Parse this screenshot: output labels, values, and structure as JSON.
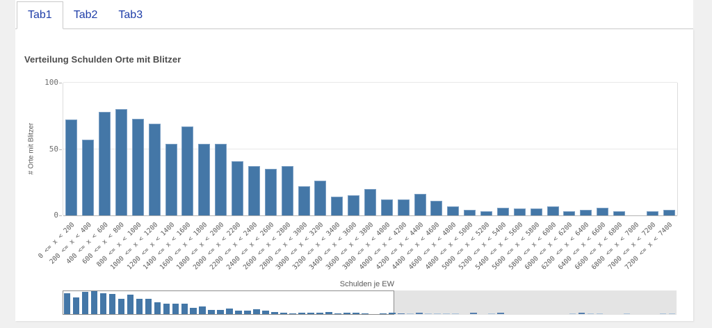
{
  "tabs": [
    {
      "label": "Tab1",
      "active": true
    },
    {
      "label": "Tab2",
      "active": false
    },
    {
      "label": "Tab3",
      "active": false
    }
  ],
  "colors": {
    "bar": "#4477a7",
    "bar_dim": "#a9c3dc",
    "bar_dim_dark": "#567fae",
    "tab_text": "#1e3da8"
  },
  "chart_data": {
    "type": "bar",
    "title": "Verteilung Schulden Orte mit Blitzer",
    "xlabel": "Schulden je EW",
    "ylabel": "# Orte mit Blitzer",
    "ylim": [
      0,
      100
    ],
    "yticks": [
      0,
      50,
      100
    ],
    "grid": "horizontal",
    "legend": "none",
    "categories": [
      "0 <= x < 200",
      "200 <= x < 400",
      "400 <= x < 600",
      "600 <= x < 800",
      "800 <= x < 1000",
      "1000 <= x < 1200",
      "1200 <= x < 1400",
      "1400 <= x < 1600",
      "1600 <= x < 1800",
      "1800 <= x < 2000",
      "2000 <= x < 2200",
      "2200 <= x < 2400",
      "2400 <= x < 2600",
      "2600 <= x < 2800",
      "2800 <= x < 3000",
      "3000 <= x < 3200",
      "3200 <= x < 3400",
      "3400 <= x < 3600",
      "3600 <= x < 3800",
      "3800 <= x < 4000",
      "4000 <= x < 4200",
      "4200 <= x < 4400",
      "4400 <= x < 4600",
      "4600 <= x < 4800",
      "4800 <= x < 5000",
      "5000 <= x < 5200",
      "5200 <= x < 5400",
      "5400 <= x < 5600",
      "5600 <= x < 5800",
      "5800 <= x < 6000",
      "6000 <= x < 6200",
      "6200 <= x < 6400",
      "6400 <= x < 6600",
      "6600 <= x < 6800",
      "6800 <= x < 7000",
      "7000 <= x < 7200",
      "7200 <= x < 7400"
    ],
    "values": [
      72,
      57,
      78,
      80,
      73,
      69,
      54,
      67,
      54,
      54,
      41,
      37,
      35,
      37,
      22,
      26,
      14,
      15,
      20,
      12,
      12,
      16,
      11,
      7,
      4,
      3,
      6,
      5,
      5,
      7,
      3,
      4,
      6,
      3,
      0,
      3,
      4
    ]
  },
  "minichart": {
    "label": "Schulden je EW",
    "extra_values": [
      3,
      2,
      4,
      2,
      2,
      2,
      2,
      0,
      6,
      0,
      3,
      5,
      0,
      0,
      0,
      0,
      0,
      0,
      0,
      3,
      4,
      3,
      3,
      0,
      0,
      2,
      0,
      0,
      0,
      2,
      2
    ],
    "extra_dark_indexes": [
      0,
      2,
      8,
      11,
      20
    ]
  }
}
